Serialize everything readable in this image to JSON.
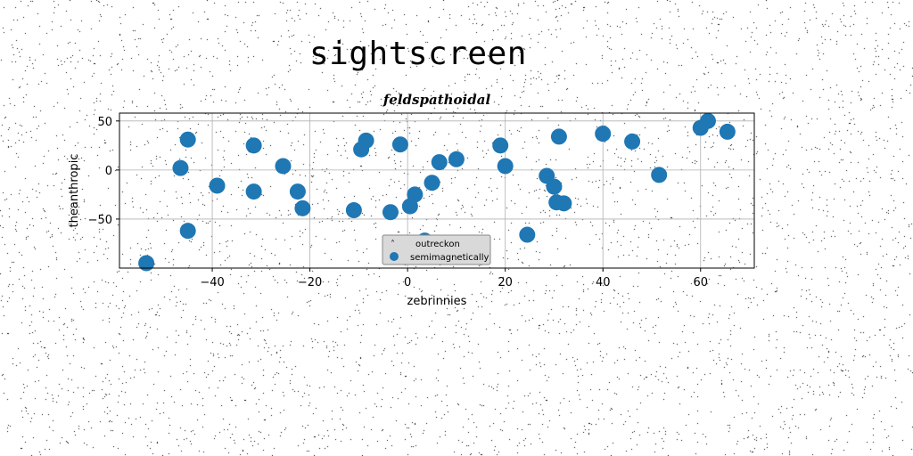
{
  "page_title": "sightscreen",
  "chart_data": {
    "type": "scatter",
    "title": "feldspathoidal",
    "xlabel": "zebrinnies",
    "ylabel": "theanthropic",
    "xlim": [
      -59,
      71
    ],
    "ylim": [
      -100,
      58
    ],
    "xticks": [
      -40,
      -20,
      0,
      20,
      40,
      60
    ],
    "yticks": [
      -50,
      0,
      50
    ],
    "xtick_labels": [
      "−40",
      "−20",
      "0",
      "20",
      "40",
      "60"
    ],
    "ytick_labels": [
      "−50",
      "0",
      "50"
    ],
    "grid": true,
    "legend_placement": "bottom-center",
    "series": [
      {
        "name": "outreckon",
        "marker": "caret",
        "color": "#000000",
        "x": [],
        "y": []
      },
      {
        "name": "semimagnetically",
        "marker": "circle",
        "color": "#1f77b4",
        "x": [
          -53.5,
          -46.5,
          -45,
          -45,
          -39,
          -31.5,
          -31.5,
          -25.5,
          -22.5,
          -21.5,
          -11,
          -9.5,
          -8.5,
          -3.5,
          -1.5,
          0.5,
          1.5,
          3.5,
          5,
          6.5,
          10,
          19,
          20,
          24.5,
          28.5,
          30,
          30.5,
          31,
          32,
          40,
          46,
          51.5,
          60,
          61.5,
          65.5
        ],
        "y": [
          -95,
          2,
          31,
          -62,
          -16,
          25,
          -22,
          4,
          -22,
          -39,
          -41,
          21,
          30,
          -43,
          26,
          -37,
          -25,
          -72,
          -13,
          8,
          11,
          25,
          4,
          -66,
          -6,
          -17,
          -33,
          34,
          -34,
          37,
          29,
          -5,
          43,
          50,
          39
        ]
      }
    ]
  }
}
